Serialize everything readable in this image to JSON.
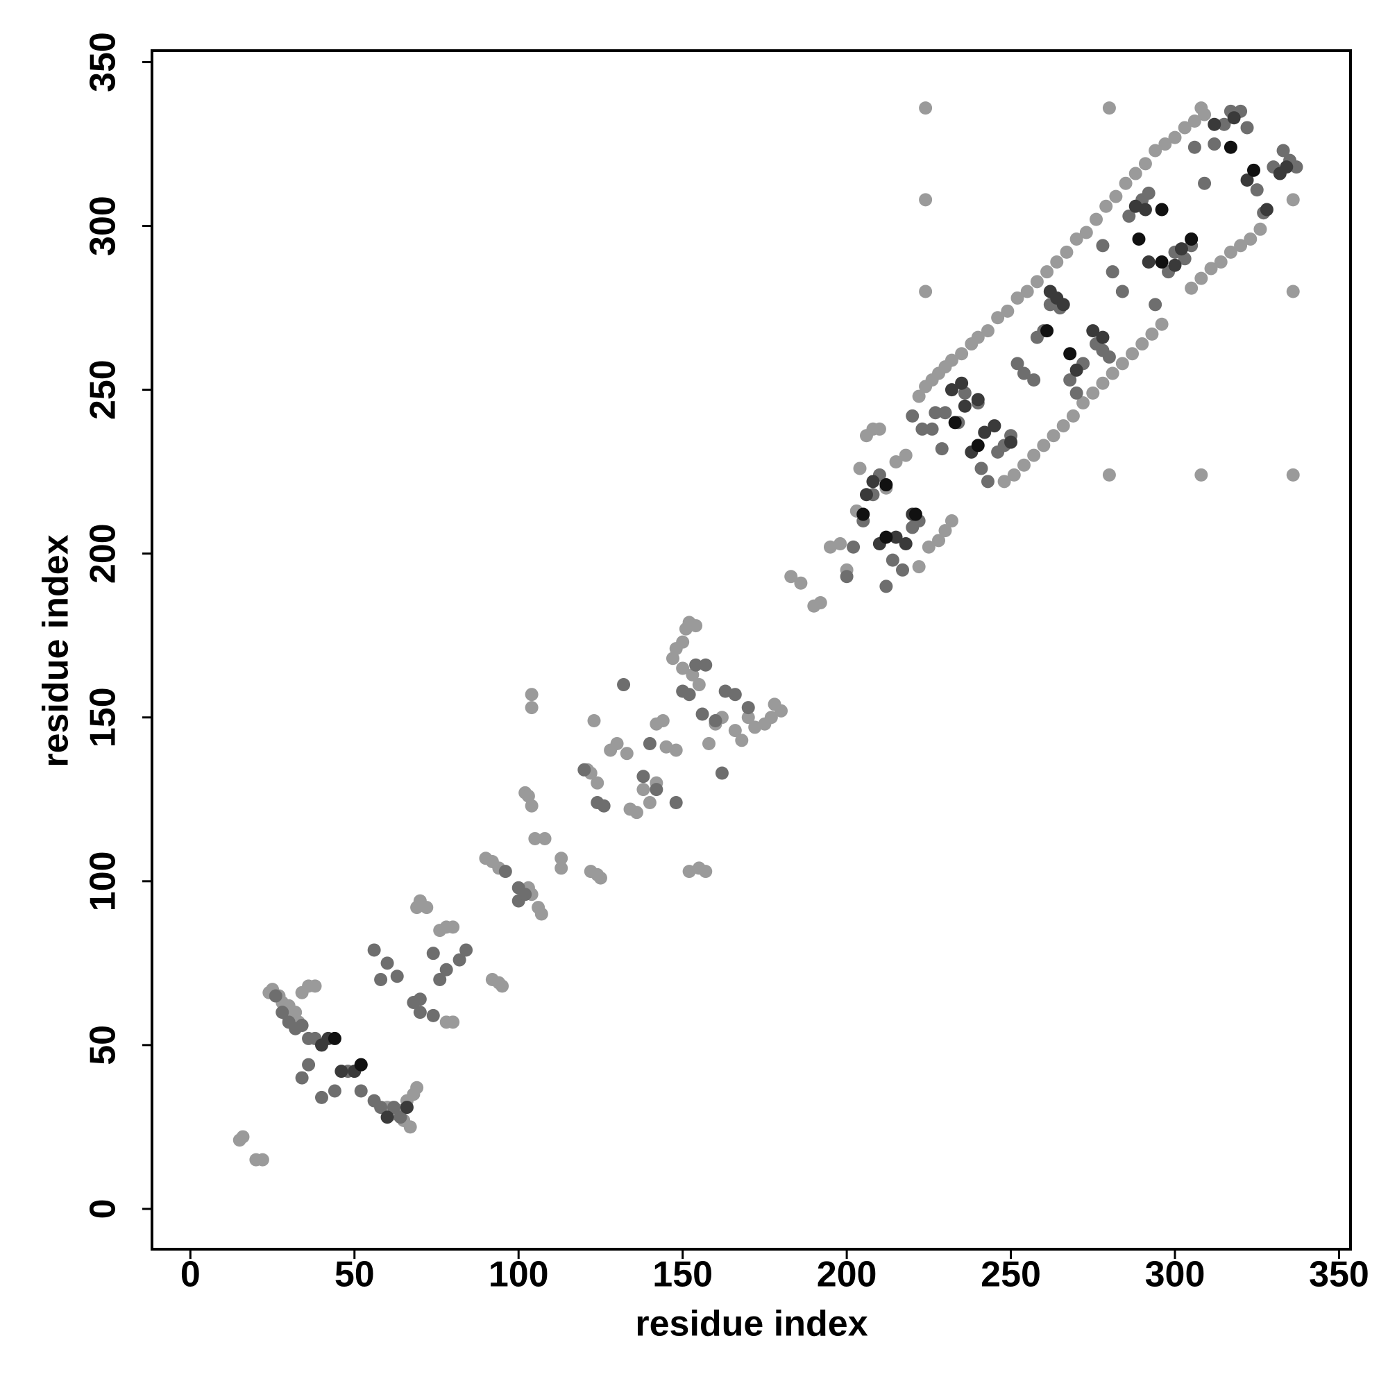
{
  "chart_data": {
    "type": "scatter",
    "xlabel": "residue index",
    "ylabel": "residue index",
    "xlim": [
      -11.7,
      353.5
    ],
    "ylim": [
      -12.3,
      353.5
    ],
    "xticks": [
      0,
      50,
      100,
      150,
      200,
      250,
      300,
      350
    ],
    "yticks": [
      0,
      50,
      100,
      150,
      200,
      250,
      300,
      350
    ],
    "grid": false,
    "series": [
      {
        "color": "#9a9a9a",
        "x": [
          15,
          16,
          20,
          22,
          24,
          25,
          27,
          28,
          30,
          32,
          34,
          36,
          38,
          30,
          33,
          60,
          62,
          64,
          66,
          68,
          69,
          67,
          65,
          69,
          70,
          72,
          76,
          78,
          80,
          80,
          78,
          90,
          92,
          94,
          92,
          94,
          95,
          102,
          103,
          104,
          105,
          108,
          103,
          104,
          106,
          107,
          104,
          104,
          113,
          113,
          122,
          124,
          125,
          121,
          122,
          124,
          123,
          128,
          130,
          133,
          134,
          136,
          138,
          140,
          142,
          142,
          144,
          145,
          148,
          147,
          148,
          150,
          151,
          152,
          154,
          150,
          153,
          155,
          158,
          160,
          162,
          166,
          168,
          170,
          172,
          175,
          177,
          178,
          180,
          155,
          157,
          152,
          183,
          186,
          190,
          192,
          195,
          198,
          200,
          203,
          206,
          208,
          210,
          204,
          212,
          215,
          218,
          222,
          225,
          228,
          230,
          232,
          222,
          224,
          226,
          228,
          230,
          232,
          235,
          238,
          240,
          243,
          246,
          249,
          252,
          255,
          258,
          261,
          264,
          267,
          270,
          273,
          276,
          279,
          282,
          285,
          288,
          291,
          294,
          297,
          300,
          303,
          306,
          309,
          248,
          251,
          254,
          257,
          260,
          263,
          266,
          269,
          272,
          275,
          278,
          281,
          284,
          287,
          290,
          293,
          296,
          305,
          308,
          311,
          314,
          317,
          320,
          323,
          326,
          224,
          224,
          224,
          280,
          280,
          308,
          336,
          336,
          336,
          308
        ],
        "values": [
          21,
          22,
          15,
          15,
          66,
          67,
          65,
          63,
          62,
          60,
          66,
          68,
          68,
          58,
          57,
          31,
          29,
          30,
          33,
          35,
          37,
          25,
          27,
          92,
          94,
          92,
          85,
          86,
          86,
          57,
          57,
          107,
          106,
          104,
          70,
          69,
          68,
          127,
          126,
          123,
          113,
          113,
          98,
          96,
          92,
          90,
          153,
          157,
          107,
          104,
          103,
          102,
          101,
          134,
          133,
          130,
          149,
          140,
          142,
          139,
          122,
          121,
          128,
          124,
          130,
          148,
          149,
          141,
          140,
          168,
          171,
          173,
          177,
          179,
          178,
          165,
          163,
          160,
          142,
          148,
          150,
          146,
          143,
          150,
          147,
          148,
          150,
          154,
          152,
          104,
          103,
          103,
          193,
          191,
          184,
          185,
          202,
          203,
          195,
          213,
          236,
          238,
          238,
          226,
          220,
          228,
          230,
          196,
          202,
          204,
          207,
          210,
          248,
          251,
          253,
          255,
          257,
          259,
          261,
          264,
          266,
          268,
          272,
          274,
          278,
          280,
          283,
          286,
          289,
          292,
          296,
          298,
          302,
          306,
          309,
          313,
          316,
          319,
          323,
          325,
          327,
          330,
          332,
          334,
          222,
          224,
          227,
          230,
          233,
          236,
          239,
          242,
          246,
          249,
          252,
          255,
          258,
          261,
          264,
          267,
          270,
          281,
          284,
          287,
          289,
          292,
          294,
          296,
          299,
          336,
          308,
          280,
          336,
          224,
          224,
          224,
          308,
          280,
          336
        ]
      },
      {
        "color": "#6e6e6e",
        "x": [
          26,
          28,
          30,
          32,
          34,
          36,
          38,
          36,
          34,
          40,
          44,
          48,
          52,
          56,
          58,
          62,
          64,
          56,
          60,
          58,
          63,
          68,
          70,
          74,
          76,
          78,
          82,
          84,
          70,
          74,
          96,
          100,
          100,
          102,
          132,
          120,
          124,
          126,
          138,
          140,
          142,
          148,
          150,
          152,
          154,
          157,
          156,
          160,
          163,
          166,
          162,
          170,
          200,
          202,
          205,
          208,
          210,
          212,
          214,
          217,
          220,
          222,
          220,
          223,
          226,
          227,
          229,
          230,
          234,
          236,
          240,
          241,
          243,
          246,
          248,
          250,
          252,
          254,
          257,
          258,
          260,
          262,
          265,
          268,
          270,
          272,
          276,
          278,
          280,
          278,
          281,
          284,
          286,
          290,
          292,
          294,
          298,
          300,
          303,
          305,
          306,
          309,
          312,
          315,
          317,
          320,
          322,
          325,
          327,
          330,
          333,
          335,
          337
        ],
        "values": [
          65,
          60,
          57,
          55,
          56,
          52,
          52,
          44,
          40,
          34,
          36,
          42,
          36,
          33,
          31,
          31,
          28,
          79,
          75,
          70,
          71,
          63,
          64,
          78,
          70,
          73,
          76,
          79,
          60,
          59,
          103,
          98,
          94,
          96,
          160,
          134,
          124,
          123,
          132,
          142,
          128,
          124,
          158,
          157,
          166,
          166,
          151,
          149,
          158,
          157,
          133,
          153,
          193,
          202,
          210,
          218,
          224,
          190,
          198,
          195,
          208,
          210,
          242,
          238,
          238,
          243,
          232,
          243,
          240,
          249,
          246,
          226,
          222,
          231,
          233,
          236,
          258,
          255,
          253,
          266,
          268,
          276,
          275,
          253,
          249,
          258,
          264,
          262,
          260,
          294,
          286,
          280,
          303,
          308,
          310,
          276,
          286,
          292,
          290,
          294,
          324,
          313,
          325,
          331,
          335,
          335,
          330,
          311,
          304,
          318,
          323,
          320,
          318
        ]
      },
      {
        "color": "#3a3a3a",
        "x": [
          40,
          42,
          46,
          50,
          52,
          60,
          66,
          206,
          208,
          210,
          215,
          218,
          220,
          232,
          235,
          236,
          238,
          240,
          242,
          245,
          250,
          262,
          264,
          266,
          270,
          275,
          278,
          288,
          291,
          292,
          300,
          302,
          305,
          312,
          318,
          322,
          328,
          332,
          334
        ],
        "values": [
          50,
          52,
          42,
          42,
          44,
          28,
          31,
          218,
          222,
          203,
          205,
          203,
          212,
          250,
          252,
          245,
          231,
          247,
          237,
          239,
          234,
          280,
          278,
          276,
          256,
          268,
          266,
          306,
          305,
          289,
          288,
          293,
          296,
          331,
          333,
          314,
          305,
          316,
          318
        ]
      },
      {
        "color": "#111111",
        "x": [
          44,
          52,
          205,
          212,
          233,
          240,
          261,
          268,
          289,
          296,
          317,
          324,
          296,
          305,
          212,
          221
        ],
        "values": [
          52,
          44,
          212,
          205,
          240,
          233,
          268,
          261,
          296,
          289,
          324,
          317,
          305,
          296,
          221,
          212
        ]
      }
    ]
  }
}
